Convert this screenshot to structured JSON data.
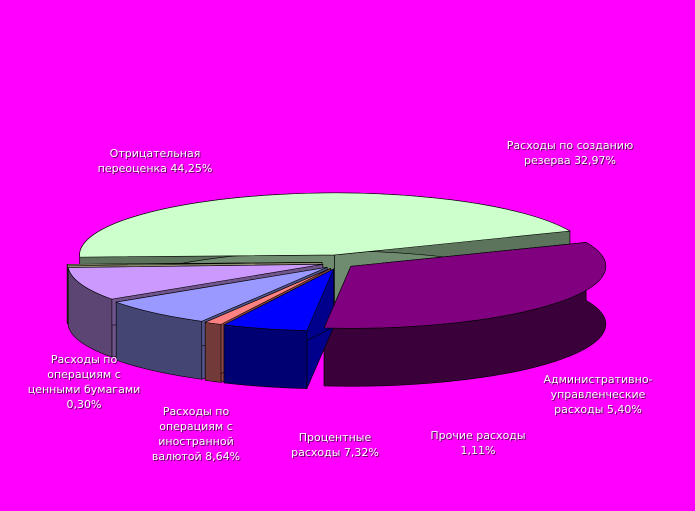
{
  "chart_data": {
    "type": "pie",
    "categories": [
      "Отрицательная переоценка",
      "Расходы по созданию резерва",
      "Административно-управленческие расходы",
      "Прочие расходы",
      "Процентные расходы",
      "Расходы по операциям с иностранной валютой",
      "Расходы по операциям с ценными бумагами"
    ],
    "values": [
      44.25,
      32.97,
      5.4,
      1.11,
      7.32,
      8.64,
      0.3
    ],
    "value_labels": [
      "44,25%",
      "32,97%",
      "5,40%",
      "1,11%",
      "7,32%",
      "8,64%",
      "0,30%"
    ],
    "colors": [
      "#ccffcc",
      "#800080",
      "#0000ff",
      "#ff8080",
      "#9999ff",
      "#cc99ff",
      "#ffffcc"
    ]
  }
}
